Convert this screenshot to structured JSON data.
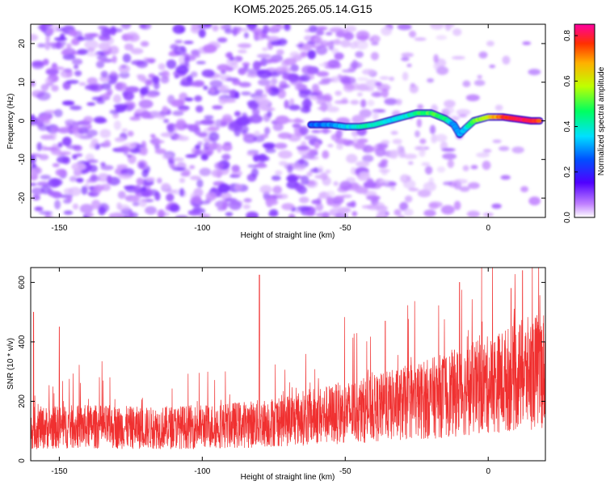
{
  "chart_data": [
    {
      "type": "heatmap",
      "title": "KOM5.2025.265.05.14.G15",
      "xlabel": "Height of straight line (km)",
      "ylabel": "Frequency (Hz)",
      "xlim": [
        -160,
        20
      ],
      "ylim": [
        -25,
        25
      ],
      "xticks": [
        -150,
        -100,
        -50,
        0
      ],
      "yticks": [
        -20,
        -10,
        0,
        10,
        20
      ],
      "colorbar": {
        "label": "Normalized spectral amplitude",
        "range": [
          0.0,
          0.85
        ],
        "ticks": [
          0.0,
          0.2,
          0.4,
          0.6,
          0.8
        ]
      },
      "ridge": {
        "description": "dominant frequency track",
        "x": [
          -62,
          -55,
          -50,
          -45,
          -40,
          -35,
          -30,
          -25,
          -20,
          -15,
          -12,
          -10,
          -8,
          -5,
          0,
          5,
          10,
          15,
          18
        ],
        "y": [
          -1,
          -1,
          -1.5,
          -1.5,
          -1,
          0,
          1,
          2,
          2,
          0.5,
          -1,
          -3.5,
          -2,
          0,
          1,
          1,
          0.5,
          0,
          0
        ],
        "amplitude": [
          0.25,
          0.3,
          0.35,
          0.4,
          0.42,
          0.38,
          0.35,
          0.45,
          0.5,
          0.45,
          0.3,
          0.3,
          0.35,
          0.5,
          0.6,
          0.75,
          0.82,
          0.8,
          0.75
        ]
      }
    },
    {
      "type": "line",
      "xlabel": "Height of straight line (km)",
      "ylabel": "SNR (10 * v/v)",
      "xlim": [
        -160,
        20
      ],
      "ylim": [
        0,
        650
      ],
      "xticks": [
        -150,
        -100,
        -50,
        0
      ],
      "yticks": [
        0,
        200,
        400,
        600
      ],
      "series": [
        {
          "name": "SNR",
          "color": "#f03030",
          "trend_x": [
            -160,
            -140,
            -120,
            -100,
            -80,
            -60,
            -40,
            -20,
            0,
            20
          ],
          "trend_y": [
            110,
            115,
            110,
            115,
            125,
            150,
            175,
            210,
            255,
            310
          ],
          "peaks_x": [
            -159,
            -150,
            -80,
            -36,
            -10,
            8,
            12
          ],
          "peaks_y": [
            500,
            450,
            625,
            470,
            600,
            580,
            640
          ]
        }
      ]
    }
  ]
}
